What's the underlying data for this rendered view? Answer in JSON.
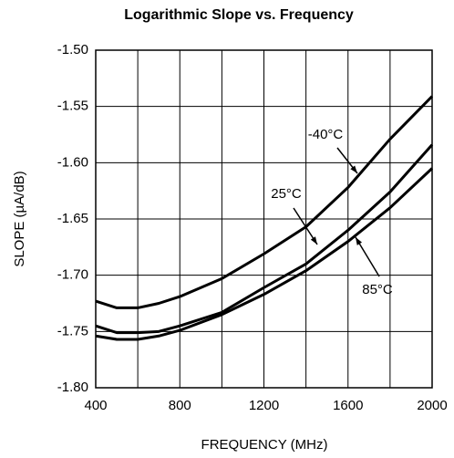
{
  "chart_data": {
    "type": "line",
    "title": "Logarithmic Slope vs. Frequency",
    "x_label": "FREQUENCY (MHz)",
    "y_label": "SLOPE (µA/dB)",
    "x": [
      400,
      500,
      600,
      700,
      800,
      1000,
      1200,
      1400,
      1600,
      1800,
      2000
    ],
    "series": [
      {
        "name": "-40°C",
        "color": "#000000",
        "values": [
          -1.723,
          -1.729,
          -1.729,
          -1.725,
          -1.719,
          -1.703,
          -1.681,
          -1.657,
          -1.622,
          -1.579,
          -1.541
        ]
      },
      {
        "name": "25°C",
        "color": "#000000",
        "values": [
          -1.745,
          -1.751,
          -1.751,
          -1.75,
          -1.745,
          -1.733,
          -1.711,
          -1.69,
          -1.66,
          -1.626,
          -1.584
        ]
      },
      {
        "name": "85°C",
        "color": "#000000",
        "values": [
          -1.754,
          -1.757,
          -1.757,
          -1.754,
          -1.749,
          -1.735,
          -1.717,
          -1.696,
          -1.67,
          -1.64,
          -1.605
        ]
      }
    ],
    "xlim": [
      400,
      2000
    ],
    "xticks": [
      400,
      800,
      1200,
      1600,
      2000
    ],
    "x_grid_minor": [
      600,
      1000,
      1400,
      1800
    ],
    "ylim": [
      -1.8,
      -1.5
    ],
    "yticks": [
      {
        "value": -1.8,
        "label": "-1.80"
      },
      -1.75,
      {
        "value": -1.7,
        "label": "-1.70"
      },
      -1.65,
      {
        "value": -1.6,
        "label": "-1.60"
      },
      -1.55,
      {
        "value": -1.5,
        "label": "-1.50"
      }
    ],
    "grid": true
  }
}
